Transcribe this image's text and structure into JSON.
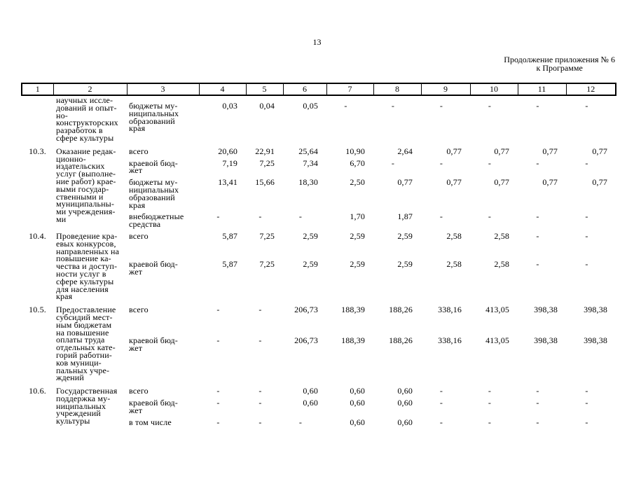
{
  "page": {
    "number": "13",
    "appendix_note_line1": "Продолжение приложения № 6",
    "appendix_note_line2": "к Программе"
  },
  "table": {
    "column_numbers": [
      "1",
      "2",
      "3",
      "4",
      "5",
      "6",
      "7",
      "8",
      "9",
      "10",
      "11",
      "12"
    ],
    "groups": [
      {
        "num": "",
        "continuation": true,
        "title": "научных иссле-\nдований и опыт-\nно-\nконструкторских\nразработок в\nсфере культуры",
        "rows": [
          {
            "label": "бюджеты му-\nниципальных\nобразований\nкрая",
            "values": [
              "0,03",
              "0,04",
              "0,05",
              "-",
              "-",
              "-",
              "-",
              "-",
              "-"
            ]
          }
        ]
      },
      {
        "num": "10.3.",
        "continuation": false,
        "title": "Оказание редак-\nционно-\nиздательских\nуслуг (выполне-\nние работ) крае-\nвыми государ-\nственными и\nмуниципальны-\nми учреждения-\nми",
        "rows": [
          {
            "label": "всего",
            "values": [
              "20,60",
              "22,91",
              "25,64",
              "10,90",
              "2,64",
              "0,77",
              "0,77",
              "0,77",
              "0,77"
            ]
          },
          {
            "label": "краевой бюд-\nжет",
            "values": [
              "7,19",
              "7,25",
              "7,34",
              "6,70",
              "-",
              "-",
              "-",
              "-",
              "-"
            ]
          },
          {
            "label": "бюджеты му-\nниципальных\nобразований\nкрая",
            "values": [
              "13,41",
              "15,66",
              "18,30",
              "2,50",
              "0,77",
              "0,77",
              "0,77",
              "0,77",
              "0,77"
            ]
          },
          {
            "label": "внебюджетные\nсредства",
            "values": [
              "-",
              "-",
              "-",
              "1,70",
              "1,87",
              "-",
              "-",
              "-",
              "-"
            ]
          }
        ]
      },
      {
        "num": "10.4.",
        "continuation": false,
        "title": "Проведение кра-\nевых конкурсов,\nнаправленных на\nповышение ка-\nчества и доступ-\nности услуг в\nсфере культуры\nдля населения\nкрая",
        "rows": [
          {
            "label": "всего",
            "values": [
              "5,87",
              "7,25",
              "2,59",
              "2,59",
              "2,59",
              "2,58",
              "2,58",
              "-",
              "-"
            ]
          },
          {
            "label": "краевой бюд-\nжет",
            "values": [
              "5,87",
              "7,25",
              "2,59",
              "2,59",
              "2,59",
              "2,58",
              "2,58",
              "-",
              "-"
            ]
          }
        ]
      },
      {
        "num": "10.5.",
        "continuation": false,
        "title": "Предоставление\nсубсидий мест-\nным бюджетам\nна повышение\nоплаты труда\nотдельных кате-\nгорий работни-\nков муници-\nпальных учре-\nждений",
        "rows": [
          {
            "label": "всего",
            "values": [
              "-",
              "-",
              "206,73",
              "188,39",
              "188,26",
              "338,16",
              "413,05",
              "398,38",
              "398,38"
            ]
          },
          {
            "label": "краевой бюд-\nжет",
            "values": [
              "-",
              "-",
              "206,73",
              "188,39",
              "188,26",
              "338,16",
              "413,05",
              "398,38",
              "398,38"
            ]
          }
        ]
      },
      {
        "num": "10.6.",
        "continuation": false,
        "title": "Государственная\nподдержка му-\nниципальных\nучреждений\nкультуры",
        "rows": [
          {
            "label": "всего",
            "values": [
              "-",
              "-",
              "0,60",
              "0,60",
              "0,60",
              "-",
              "-",
              "-",
              "-"
            ]
          },
          {
            "label": "краевой бюд-\nжет",
            "values": [
              "-",
              "-",
              "0,60",
              "0,60",
              "0,60",
              "-",
              "-",
              "-",
              "-"
            ]
          },
          {
            "label": "в том числе",
            "values": [
              "-",
              "-",
              "-",
              "0,60",
              "0,60",
              "-",
              "-",
              "-",
              "-"
            ]
          }
        ]
      }
    ]
  }
}
